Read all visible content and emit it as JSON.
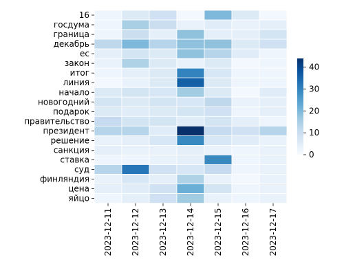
{
  "chart_data": {
    "type": "heatmap",
    "title": "",
    "xlabel": "",
    "ylabel": "",
    "x": [
      "2023-12-11",
      "2023-12-12",
      "2023-12-13",
      "2023-12-14",
      "2023-12-15",
      "2023-12-16",
      "2023-12-17"
    ],
    "y": [
      "16",
      "госдума",
      "граница",
      "декабрь",
      "ес",
      "закон",
      "итог",
      "линия",
      "начало",
      "новогодний",
      "подарок",
      "правительство",
      "президент",
      "решение",
      "санкция",
      "ставка",
      "суд",
      "финляндия",
      "цена",
      "яйцо"
    ],
    "values": [
      [
        2,
        6,
        9,
        1,
        20,
        6,
        1
      ],
      [
        2,
        15,
        10,
        3,
        5,
        3,
        4
      ],
      [
        2,
        10,
        4,
        18,
        4,
        4,
        8
      ],
      [
        12,
        20,
        13,
        18,
        18,
        6,
        9
      ],
      [
        4,
        8,
        6,
        18,
        13,
        5,
        2
      ],
      [
        3,
        14,
        6,
        3,
        6,
        1,
        2
      ],
      [
        2,
        4,
        6,
        30,
        7,
        2,
        2
      ],
      [
        1,
        3,
        6,
        36,
        6,
        2,
        2
      ],
      [
        6,
        8,
        7,
        16,
        6,
        1,
        5
      ],
      [
        8,
        6,
        8,
        7,
        12,
        3,
        4
      ],
      [
        6,
        5,
        6,
        8,
        9,
        2,
        4
      ],
      [
        11,
        8,
        8,
        5,
        8,
        4,
        2
      ],
      [
        13,
        13,
        5,
        44,
        11,
        9,
        13
      ],
      [
        3,
        4,
        7,
        29,
        7,
        5,
        3
      ],
      [
        4,
        3,
        3,
        4,
        3,
        2,
        3
      ],
      [
        2,
        2,
        3,
        4,
        29,
        2,
        3
      ],
      [
        13,
        32,
        9,
        7,
        11,
        2,
        3
      ],
      [
        3,
        7,
        4,
        14,
        3,
        1,
        3
      ],
      [
        4,
        5,
        9,
        22,
        8,
        2,
        3
      ],
      [
        2,
        4,
        9,
        16,
        3,
        2,
        3
      ]
    ],
    "colorbar": {
      "min": 0,
      "max": 44,
      "ticks": [
        0,
        10,
        20,
        30,
        40
      ],
      "colormap": "Blues"
    },
    "grid": false,
    "legend": "colorbar-right"
  }
}
